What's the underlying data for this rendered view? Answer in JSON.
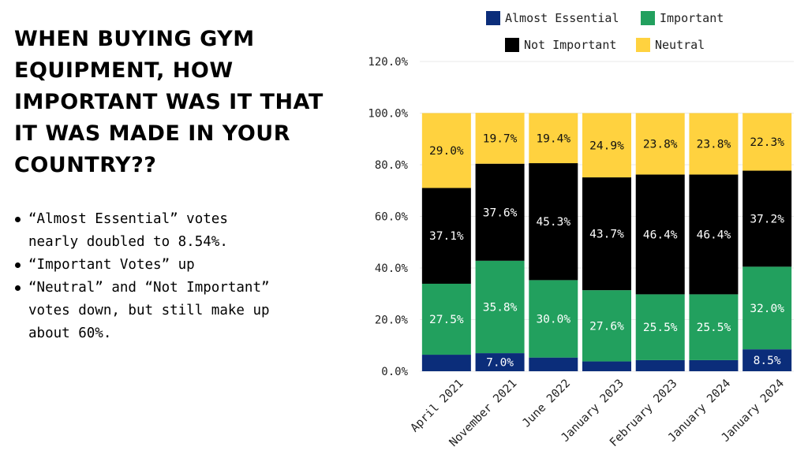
{
  "title": "WHEN BUYING GYM EQUIPMENT, HOW IMPORTANT WAS IT THAT IT WAS MADE IN YOUR COUNTRY??",
  "bullets": [
    "“Almost Essential” votes nearly doubled to 8.54%.",
    "“Important Votes” up",
    "“Neutral” and “Not Important” votes down, but still make up about 60%."
  ],
  "chart_data": {
    "type": "bar",
    "stacked": true,
    "categories": [
      "April 2021",
      "November 2021",
      "June 2022",
      "January 2023",
      "February 2023",
      "January 2024",
      "January 2024"
    ],
    "series": [
      {
        "name": "Almost Essential",
        "color": "#0b2d7a",
        "values": [
          6.4,
          7.0,
          5.3,
          3.8,
          4.3,
          4.3,
          8.5
        ],
        "labels": [
          "",
          "7.0%",
          "",
          "",
          "",
          "",
          "8.5%"
        ]
      },
      {
        "name": "Important",
        "color": "#22a05e",
        "values": [
          27.5,
          35.8,
          30.0,
          27.6,
          25.5,
          25.5,
          32.0
        ],
        "labels": [
          "27.5%",
          "35.8%",
          "30.0%",
          "27.6%",
          "25.5%",
          "25.5%",
          "32.0%"
        ]
      },
      {
        "name": "Not Important",
        "color": "#000000",
        "values": [
          37.1,
          37.6,
          45.3,
          43.7,
          46.4,
          46.4,
          37.2
        ],
        "labels": [
          "37.1%",
          "37.6%",
          "45.3%",
          "43.7%",
          "46.4%",
          "46.4%",
          "37.2%"
        ]
      },
      {
        "name": "Neutral",
        "color": "#ffd23f",
        "values": [
          29.0,
          19.7,
          19.4,
          24.9,
          23.8,
          23.8,
          22.3
        ],
        "labels": [
          "29.0%",
          "19.7%",
          "19.4%",
          "24.9%",
          "23.8%",
          "23.8%",
          "22.3%"
        ]
      }
    ],
    "ylim": [
      0,
      120
    ],
    "yticks": [
      "0.0%",
      "20.0%",
      "40.0%",
      "60.0%",
      "80.0%",
      "100.0%",
      "120.0%"
    ],
    "legend_order": [
      "Almost Essential",
      "Important",
      "Not Important",
      "Neutral"
    ],
    "legend_position": "top",
    "grid": true
  }
}
